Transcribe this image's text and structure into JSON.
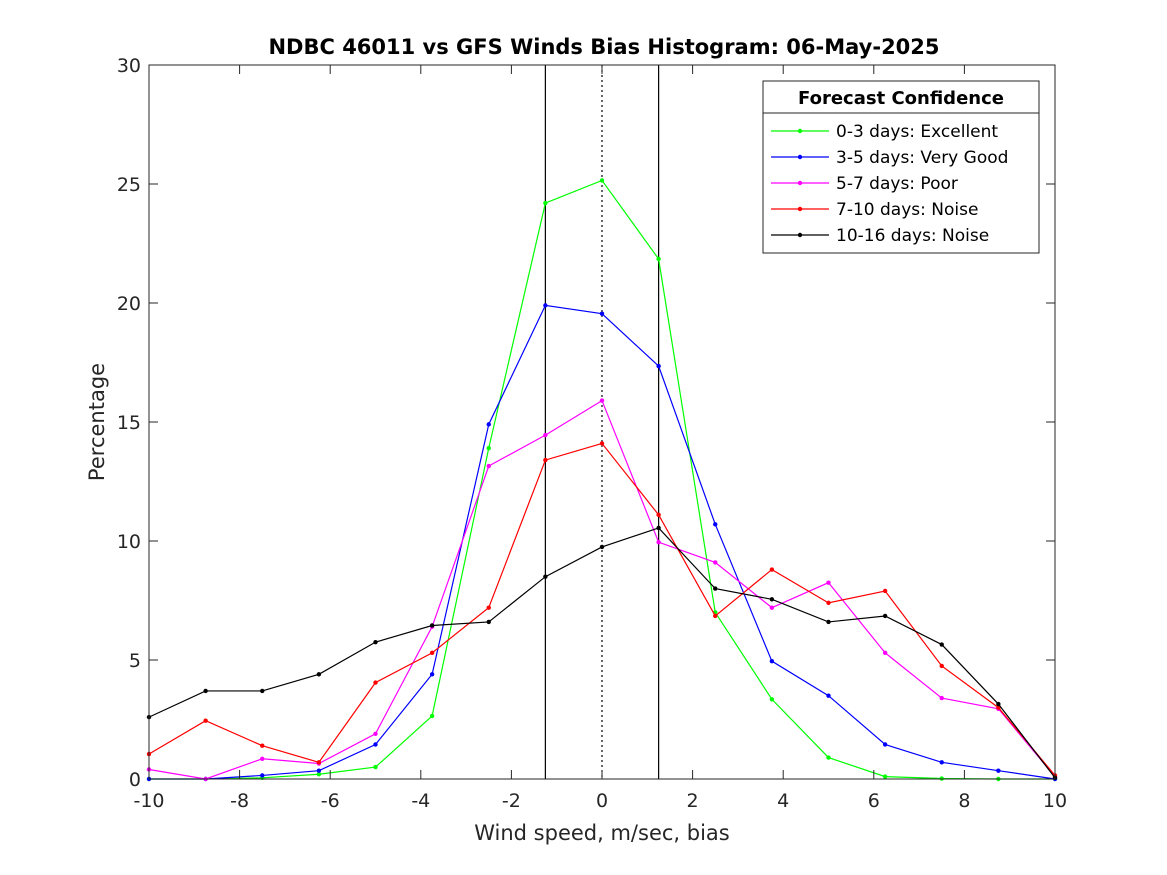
{
  "chart_data": {
    "type": "line",
    "title": "NDBC 46011 vs GFS Winds Bias Histogram: 06-May-2025",
    "xlabel": "Wind speed, m/sec, bias",
    "ylabel": "Percentage",
    "xlim": [
      -10,
      10
    ],
    "ylim": [
      0,
      30
    ],
    "xticks": [
      -10,
      -8,
      -6,
      -4,
      -2,
      0,
      2,
      4,
      6,
      8,
      10
    ],
    "yticks": [
      0,
      5,
      10,
      15,
      20,
      25,
      30
    ],
    "xtick_labels": [
      "-10",
      "-8",
      "-6",
      "-4",
      "-2",
      "0",
      "2",
      "4",
      "6",
      "8",
      "10"
    ],
    "ytick_labels": [
      "0",
      "5",
      "10",
      "15",
      "20",
      "25",
      "30"
    ],
    "grid": false,
    "legend_title": "Forecast Confidence",
    "legend_position": "top-right",
    "vertical_lines": [
      {
        "x": -1.25,
        "style": "solid",
        "color": "#000000"
      },
      {
        "x": 0,
        "style": "dotted",
        "color": "#000000"
      },
      {
        "x": 1.25,
        "style": "solid",
        "color": "#000000"
      }
    ],
    "x": [
      -10,
      -8.75,
      -7.5,
      -6.25,
      -5,
      -3.75,
      -2.5,
      -1.25,
      0,
      1.25,
      2.5,
      3.75,
      5,
      6.25,
      7.5,
      8.75,
      10
    ],
    "series": [
      {
        "name": "0-3 days: Excellent",
        "color": "#00ff00",
        "values": [
          0,
          0,
          0.05,
          0.2,
          0.5,
          2.65,
          13.9,
          24.2,
          25.15,
          21.85,
          7.0,
          3.35,
          0.9,
          0.1,
          0.02,
          0.0,
          0.0
        ]
      },
      {
        "name": "3-5 days: Very Good",
        "color": "#0000ff",
        "values": [
          0,
          0,
          0.15,
          0.35,
          1.45,
          4.4,
          14.9,
          19.9,
          19.55,
          17.35,
          10.7,
          4.95,
          3.5,
          1.45,
          0.7,
          0.35,
          0.0
        ]
      },
      {
        "name": "5-7 days: Poor",
        "color": "#ff00ff",
        "values": [
          0.4,
          0.0,
          0.85,
          0.65,
          1.9,
          6.4,
          13.15,
          14.45,
          15.9,
          9.95,
          9.1,
          7.2,
          8.25,
          5.3,
          3.4,
          2.95,
          0.1
        ]
      },
      {
        "name": "7-10 days: Noise",
        "color": "#ff0000",
        "values": [
          1.05,
          2.45,
          1.4,
          0.7,
          4.05,
          5.3,
          7.2,
          13.4,
          14.1,
          11.1,
          6.85,
          8.8,
          7.4,
          7.9,
          4.75,
          3.0,
          0.15
        ]
      },
      {
        "name": "10-16 days: Noise",
        "color": "#000000",
        "values": [
          2.6,
          3.7,
          3.7,
          4.4,
          5.75,
          6.45,
          6.6,
          8.5,
          9.75,
          10.55,
          8.0,
          7.55,
          6.6,
          6.85,
          5.65,
          3.15,
          0.05
        ]
      }
    ]
  }
}
